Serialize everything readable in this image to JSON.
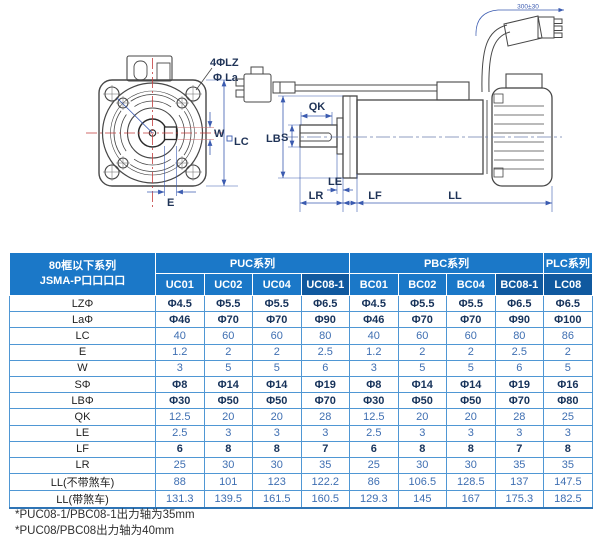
{
  "colors": {
    "hdr": "#1b78c8",
    "hdrDark": "#10599f",
    "grid": "#4f97d4",
    "lbl": "#1f1f1f",
    "valB": "#3f6fb2",
    "valD": "#16325a",
    "dim": "#3b5bb0",
    "line": "#474747",
    "red": "#c23b3b",
    "nav": "#1f3357"
  },
  "drawing": {
    "labels": {
      "holes": "4ΦLZ",
      "la": "Φ La",
      "w": "W",
      "lc": "LC",
      "e": "E",
      "qk": "QK",
      "s": "S",
      "lb": "LB",
      "le": "LE",
      "lr": "LR",
      "lf": "LF",
      "ll": "LL",
      "cable_length": "300±30"
    }
  },
  "table": {
    "corner_line1": "80框以下系列",
    "corner_line2": "JSMA-P口口口口",
    "groups": [
      {
        "label": "PUC系列",
        "span": 4
      },
      {
        "label": "PBC系列",
        "span": 4
      },
      {
        "label": "PLC系列",
        "span": 1
      }
    ],
    "models": [
      {
        "label": "UC01",
        "highlight": false
      },
      {
        "label": "UC02",
        "highlight": false
      },
      {
        "label": "UC04",
        "highlight": false
      },
      {
        "label": "UC08-1",
        "highlight": true
      },
      {
        "label": "BC01",
        "highlight": false
      },
      {
        "label": "BC02",
        "highlight": false
      },
      {
        "label": "BC04",
        "highlight": false
      },
      {
        "label": "BC08-1",
        "highlight": true
      },
      {
        "label": "LC08",
        "highlight": true
      }
    ],
    "rows": [
      {
        "label": "LZΦ",
        "dark": true,
        "values": [
          "Φ4.5",
          "Φ5.5",
          "Φ5.5",
          "Φ6.5",
          "Φ4.5",
          "Φ5.5",
          "Φ5.5",
          "Φ6.5",
          "Φ6.5"
        ]
      },
      {
        "label": "LaΦ",
        "dark": true,
        "values": [
          "Φ46",
          "Φ70",
          "Φ70",
          "Φ90",
          "Φ46",
          "Φ70",
          "Φ70",
          "Φ90",
          "Φ100"
        ]
      },
      {
        "label": "LC",
        "dark": false,
        "values": [
          "40",
          "60",
          "60",
          "80",
          "40",
          "60",
          "60",
          "80",
          "86"
        ]
      },
      {
        "label": "E",
        "dark": false,
        "values": [
          "1.2",
          "2",
          "2",
          "2.5",
          "1.2",
          "2",
          "2",
          "2.5",
          "2"
        ]
      },
      {
        "label": "W",
        "dark": false,
        "values": [
          "3",
          "5",
          "5",
          "6",
          "3",
          "5",
          "5",
          "6",
          "5"
        ]
      },
      {
        "label": "SΦ",
        "dark": true,
        "values": [
          "Φ8",
          "Φ14",
          "Φ14",
          "Φ19",
          "Φ8",
          "Φ14",
          "Φ14",
          "Φ19",
          "Φ16"
        ]
      },
      {
        "label": "LBΦ",
        "dark": true,
        "values": [
          "Φ30",
          "Φ50",
          "Φ50",
          "Φ70",
          "Φ30",
          "Φ50",
          "Φ50",
          "Φ70",
          "Φ80"
        ]
      },
      {
        "label": "QK",
        "dark": false,
        "values": [
          "12.5",
          "20",
          "20",
          "28",
          "12.5",
          "20",
          "20",
          "28",
          "25"
        ]
      },
      {
        "label": "LE",
        "dark": false,
        "values": [
          "2.5",
          "3",
          "3",
          "3",
          "2.5",
          "3",
          "3",
          "3",
          "3"
        ]
      },
      {
        "label": "LF",
        "dark": true,
        "values": [
          "6",
          "8",
          "8",
          "7",
          "6",
          "8",
          "8",
          "7",
          "8"
        ]
      },
      {
        "label": "LR",
        "dark": false,
        "values": [
          "25",
          "30",
          "30",
          "35",
          "25",
          "30",
          "30",
          "35",
          "35"
        ]
      },
      {
        "label": "LL(不带煞车)",
        "dark": false,
        "values": [
          "88",
          "101",
          "123",
          "122.2",
          "86",
          "106.5",
          "128.5",
          "137",
          "147.5"
        ]
      },
      {
        "label": "LL(带煞车)",
        "dark": false,
        "values": [
          "131.3",
          "139.5",
          "161.5",
          "160.5",
          "129.3",
          "145",
          "167",
          "175.3",
          "182.5"
        ]
      }
    ]
  },
  "footnotes": [
    "*PUC08-1/PBC08-1出力轴为35mm",
    "*PUC08/PBC08出力轴为40mm"
  ]
}
